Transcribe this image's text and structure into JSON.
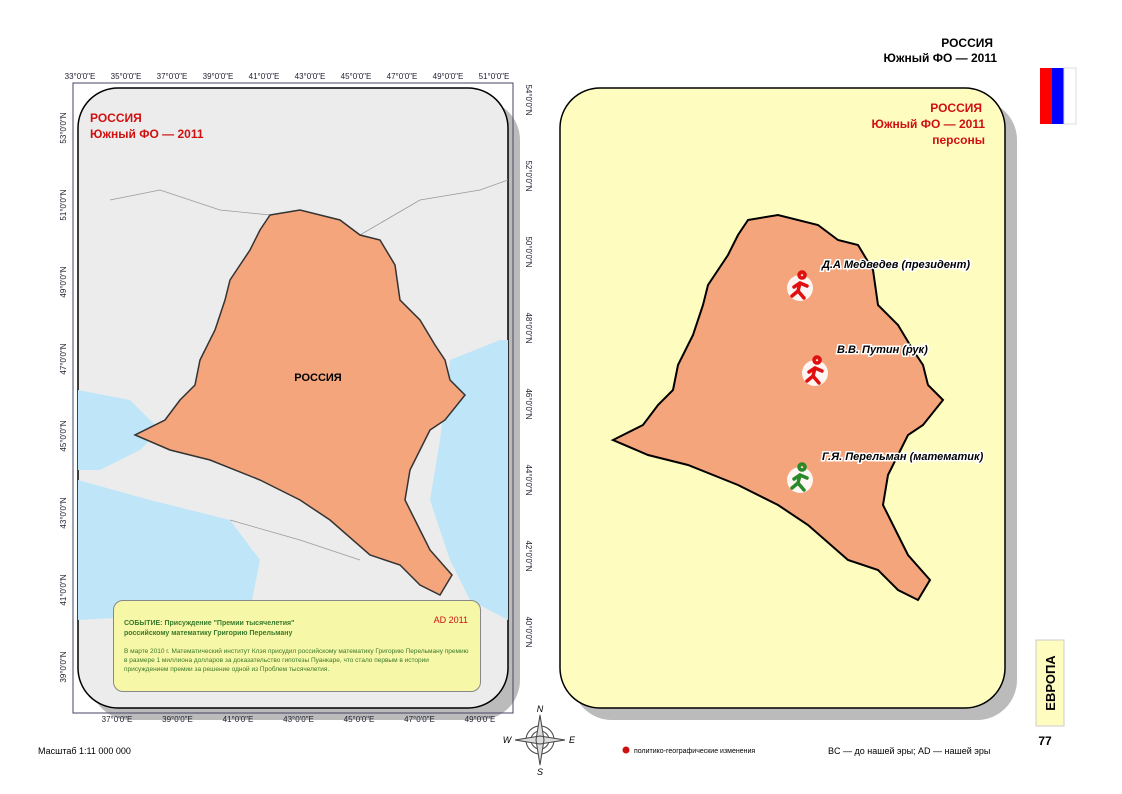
{
  "header": {
    "title": "РОССИЯ",
    "subtitle": "Южный ФО — 2011"
  },
  "left_map": {
    "title": "РОССИЯ",
    "subtitle": "Южный ФО — 2011",
    "region_label": "РОССИЯ",
    "top_lon": [
      "33°0'0\"E",
      "35°0'0\"E",
      "37°0'0\"E",
      "39°0'0\"E",
      "41°0'0\"E",
      "43°0'0\"E",
      "45°0'0\"E",
      "47°0'0\"E",
      "49°0'0\"E",
      "51°0'0\"E"
    ],
    "bottom_lon": [
      "37°0'0\"E",
      "39°0'0\"E",
      "41°0'0\"E",
      "43°0'0\"E",
      "45°0'0\"E",
      "47°0'0\"E",
      "49°0'0\"E"
    ],
    "left_lat": [
      "53°0'0\"N",
      "51°0'0\"N",
      "49°0'0\"N",
      "47°0'0\"N",
      "45°0'0\"N",
      "43°0'0\"N",
      "41°0'0\"N",
      "39°0'0\"N"
    ],
    "right_lat": [
      "54°0'0\"N",
      "52°0'0\"N",
      "50°0'0\"N",
      "48°0'0\"N",
      "46°0'0\"N",
      "44°0'0\"N",
      "42°0'0\"N",
      "40°0'0\"N"
    ]
  },
  "event": {
    "date": "AD 2011",
    "title_lines": [
      "СОБЫТИЕ: Присуждение \"Премии тысячелетия\"",
      "российскому математику Григорию Перельману"
    ],
    "text": "В марте 2010 г. Математический институт Клэя присудил российскому математику Григорию Перельману премию в размере 1 миллиона долларов за доказательство гипотезы Пуанкаре, что стало первым в истории присуждением премии за решение одной из Проблем тысячелетия."
  },
  "right_map": {
    "title": "РОССИЯ",
    "subtitle": "Южный ФО — 2011",
    "theme": "персоны",
    "persons": [
      {
        "label": "Д.А Медведев (президент)",
        "color": "#e01010"
      },
      {
        "label": "В.В. Путин (рук)",
        "color": "#e01010"
      },
      {
        "label": "Г.Я. Перельман (математик)",
        "color": "#2a8a2a"
      }
    ]
  },
  "compass": [
    "N",
    "W",
    "E",
    "S"
  ],
  "side_tab": {
    "section": "ЕВРОПА",
    "page": "77"
  },
  "footer": {
    "scale": "Масштаб 1:11 000 000",
    "legend": "политико-географические изменения",
    "note": "BC — до нашей эры; AD — нашей эры"
  }
}
